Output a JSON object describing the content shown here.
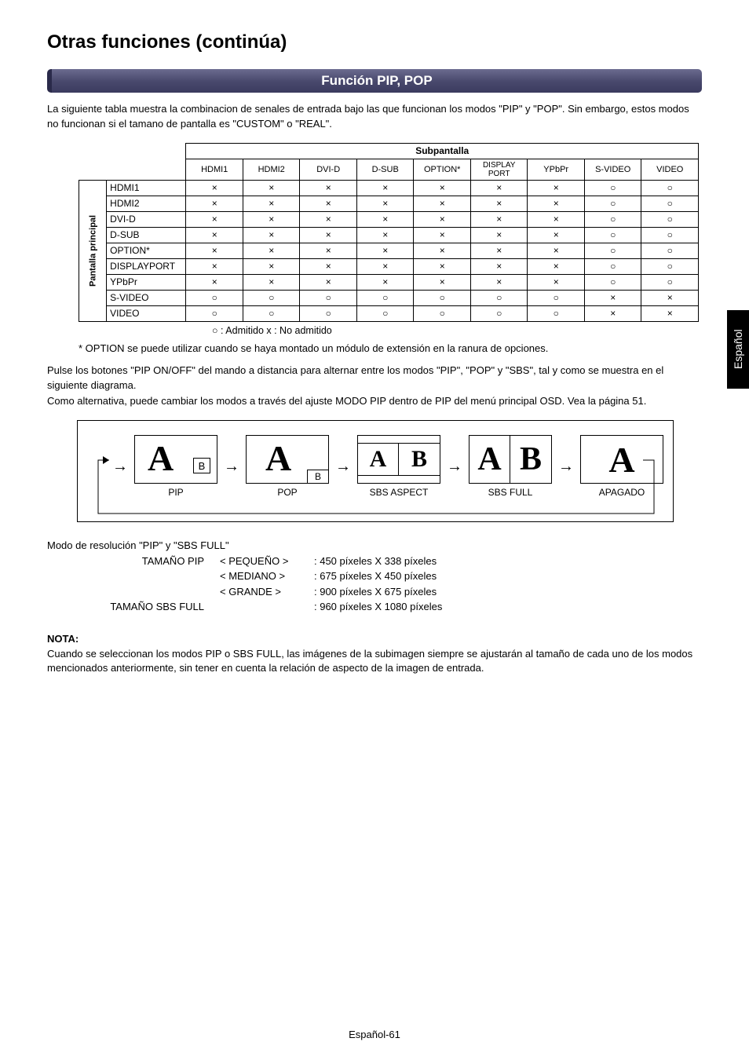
{
  "page": {
    "title": "Otras funciones (continúa)",
    "section_title": "Función PIP, POP",
    "intro": "La siguiente tabla muestra la combinacion de senales de entrada bajo las que funcionan los modos \"PIP\" y \"POP\". Sin embargo, estos modos no funcionan si el tamano de pantalla es \"CUSTOM\" o \"REAL\".",
    "footer": "Español-61",
    "sidetab": "Español"
  },
  "symbols": {
    "circle": "○",
    "cross": "×"
  },
  "table": {
    "top_header": "Subpantalla",
    "left_header": "Pantalla principal",
    "columns": [
      "HDMI1",
      "HDMI2",
      "DVI-D",
      "D-SUB",
      "OPTION*",
      "DISPLAY PORT",
      "YPbPr",
      "S-VIDEO",
      "VIDEO"
    ],
    "rows": [
      {
        "label": "HDMI1",
        "cells": [
          "×",
          "×",
          "×",
          "×",
          "×",
          "×",
          "×",
          "○",
          "○"
        ]
      },
      {
        "label": "HDMI2",
        "cells": [
          "×",
          "×",
          "×",
          "×",
          "×",
          "×",
          "×",
          "○",
          "○"
        ]
      },
      {
        "label": "DVI-D",
        "cells": [
          "×",
          "×",
          "×",
          "×",
          "×",
          "×",
          "×",
          "○",
          "○"
        ]
      },
      {
        "label": "D-SUB",
        "cells": [
          "×",
          "×",
          "×",
          "×",
          "×",
          "×",
          "×",
          "○",
          "○"
        ]
      },
      {
        "label": "OPTION*",
        "cells": [
          "×",
          "×",
          "×",
          "×",
          "×",
          "×",
          "×",
          "○",
          "○"
        ]
      },
      {
        "label": "DISPLAYPORT",
        "cells": [
          "×",
          "×",
          "×",
          "×",
          "×",
          "×",
          "×",
          "○",
          "○"
        ]
      },
      {
        "label": "YPbPr",
        "cells": [
          "×",
          "×",
          "×",
          "×",
          "×",
          "×",
          "×",
          "○",
          "○"
        ]
      },
      {
        "label": "S-VIDEO",
        "cells": [
          "○",
          "○",
          "○",
          "○",
          "○",
          "○",
          "○",
          "×",
          "×"
        ]
      },
      {
        "label": "VIDEO",
        "cells": [
          "○",
          "○",
          "○",
          "○",
          "○",
          "○",
          "○",
          "×",
          "×"
        ]
      }
    ],
    "legend": "○ : Admitido    x : No admitido",
    "footnote": "* OPTION se puede utilizar cuando se haya montado un módulo de extensión en la ranura de opciones."
  },
  "para1": "Pulse los botones \"PIP ON/OFF\" del mando a distancia para alternar entre los modos \"PIP\", \"POP\" y \"SBS\", tal y como se muestra en el siguiente diagrama.",
  "para2": "Como alternativa, puede cambiar los modos a través del ajuste MODO PIP dentro de PIP del menú principal OSD. Vea la página 51.",
  "diagram": {
    "modes": [
      "PIP",
      "POP",
      "SBS ASPECT",
      "SBS FULL",
      "APAGADO"
    ],
    "A": "A",
    "B": "B"
  },
  "resolution": {
    "title": "Modo de resolución \"PIP\" y \"SBS FULL\"",
    "pip_label": "TAMAÑO PIP",
    "sbs_label": "TAMAÑO SBS FULL",
    "rows": [
      {
        "k": "< PEQUEÑO >",
        "v": ": 450 píxeles X 338 píxeles"
      },
      {
        "k": "< MEDIANO >",
        "v": ": 675 píxeles X 450 píxeles"
      },
      {
        "k": "< GRANDE >",
        "v": ": 900 píxeles X 675 píxeles"
      }
    ],
    "sbs_val": ": 960 píxeles X 1080 píxeles"
  },
  "nota": {
    "label": "NOTA:",
    "text": "Cuando se seleccionan los modos PIP o SBS FULL, las imágenes de la subimagen siempre se ajustarán al tamaño de cada uno de los modos mencionados anteriormente, sin tener en cuenta la relación de aspecto de la imagen de entrada."
  },
  "style": {
    "bar_gradient_top": "#6b6b8f",
    "bar_gradient_bottom": "#3a3a5e",
    "border_color": "#000000",
    "text_color": "#000000",
    "bg": "#ffffff",
    "title_fontsize": 24,
    "body_fontsize": 13,
    "table_fontsize": 12
  }
}
